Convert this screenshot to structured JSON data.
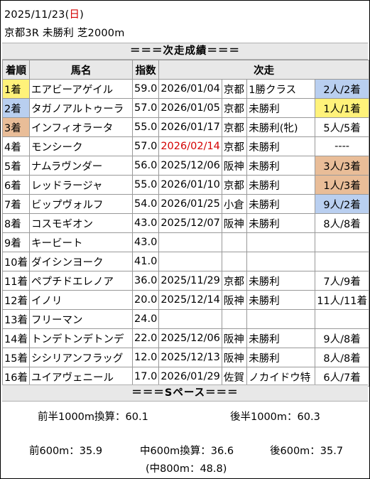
{
  "header": {
    "date": "2025/11/23",
    "weekday_open": "(",
    "weekday": "日",
    "weekday_close": ")",
    "race": "京都3R 未勝利 芝2000m"
  },
  "result_banner": "＝＝＝次走成績＝＝＝",
  "columns": [
    "着順",
    "馬名",
    "指数",
    "次走"
  ],
  "rows": [
    {
      "rank": "1着",
      "name": "エアビーアゲイル",
      "index": "59.0",
      "date": "2026/01/04",
      "venue": "京都",
      "race": "1勝クラス",
      "result": "2人/2着"
    },
    {
      "rank": "2着",
      "name": "タガノアルトゥーラ",
      "index": "57.0",
      "date": "2026/01/05",
      "venue": "京都",
      "race": "未勝利",
      "result": "1人/1着"
    },
    {
      "rank": "3着",
      "name": "インフィオラータ",
      "index": "55.0",
      "date": "2026/01/17",
      "venue": "京都",
      "race": "未勝利(牝)",
      "result": "5人/5着"
    },
    {
      "rank": "4着",
      "name": "モンシーク",
      "index": "57.0",
      "date": "2026/02/14",
      "venue": "京都",
      "race": "未勝利",
      "result": "----"
    },
    {
      "rank": "5着",
      "name": "ナムラヴンダー",
      "index": "56.0",
      "date": "2025/12/06",
      "venue": "阪神",
      "race": "未勝利",
      "result": "3人/3着"
    },
    {
      "rank": "6着",
      "name": "レッドラージャ",
      "index": "55.0",
      "date": "2026/01/10",
      "venue": "京都",
      "race": "未勝利",
      "result": "1人/3着"
    },
    {
      "rank": "7着",
      "name": "ビップヴォルフ",
      "index": "54.0",
      "date": "2026/01/25",
      "venue": "小倉",
      "race": "未勝利",
      "result": "9人/2着"
    },
    {
      "rank": "8着",
      "name": "コスモギオン",
      "index": "43.0",
      "date": "2025/12/07",
      "venue": "阪神",
      "race": "未勝利",
      "result": "8人/8着"
    },
    {
      "rank": "9着",
      "name": "キービート",
      "index": "43.0",
      "date": "",
      "venue": "",
      "race": "",
      "result": ""
    },
    {
      "rank": "10着",
      "name": "ダイシンヨーク",
      "index": "41.0",
      "date": "",
      "venue": "",
      "race": "",
      "result": ""
    },
    {
      "rank": "11着",
      "name": "ペプチドエレノア",
      "index": "36.0",
      "date": "2025/11/29",
      "venue": "京都",
      "race": "未勝利",
      "result": "7人/9着"
    },
    {
      "rank": "12着",
      "name": "イノリ",
      "index": "20.0",
      "date": "2025/12/14",
      "venue": "阪神",
      "race": "未勝利",
      "result": "11人/11着"
    },
    {
      "rank": "13着",
      "name": "フリーマン",
      "index": "24.0",
      "date": "",
      "venue": "",
      "race": "",
      "result": ""
    },
    {
      "rank": "14着",
      "name": "トンデトンデトンデ",
      "index": "22.0",
      "date": "2025/12/06",
      "venue": "阪神",
      "race": "未勝利",
      "result": "9人/8着"
    },
    {
      "rank": "15着",
      "name": "シシリアンフラッグ",
      "index": "12.0",
      "date": "2025/12/13",
      "venue": "阪神",
      "race": "未勝利",
      "result": "8人/8着"
    },
    {
      "rank": "16着",
      "name": "ユイアヴェニール",
      "index": "17.0",
      "date": "2026/01/29",
      "venue": "佐賀",
      "race": "ノカイドウ特",
      "result": "6人/7着"
    }
  ],
  "rank_colors": {
    "1着": "#fff27a",
    "2着": "#b9cff0",
    "3着": "#e9bd98"
  },
  "result_colors": {
    "1着": "#fff27a",
    "2着": "#b9cff0",
    "3着": "#e9bd98"
  },
  "highlight_date": "2026/02/14",
  "highlight_color": "#d40000",
  "pace_banner": "＝＝＝Sペース＝＝＝",
  "pace": {
    "first_half": "前半1000m換算：60.1",
    "second_half": "後半1000m：60.3",
    "first_600": "前600m：35.9",
    "middle_600": "中600m換算：36.6",
    "last_600": "後600m：35.7",
    "middle_800": "(中800m：48.8)"
  }
}
